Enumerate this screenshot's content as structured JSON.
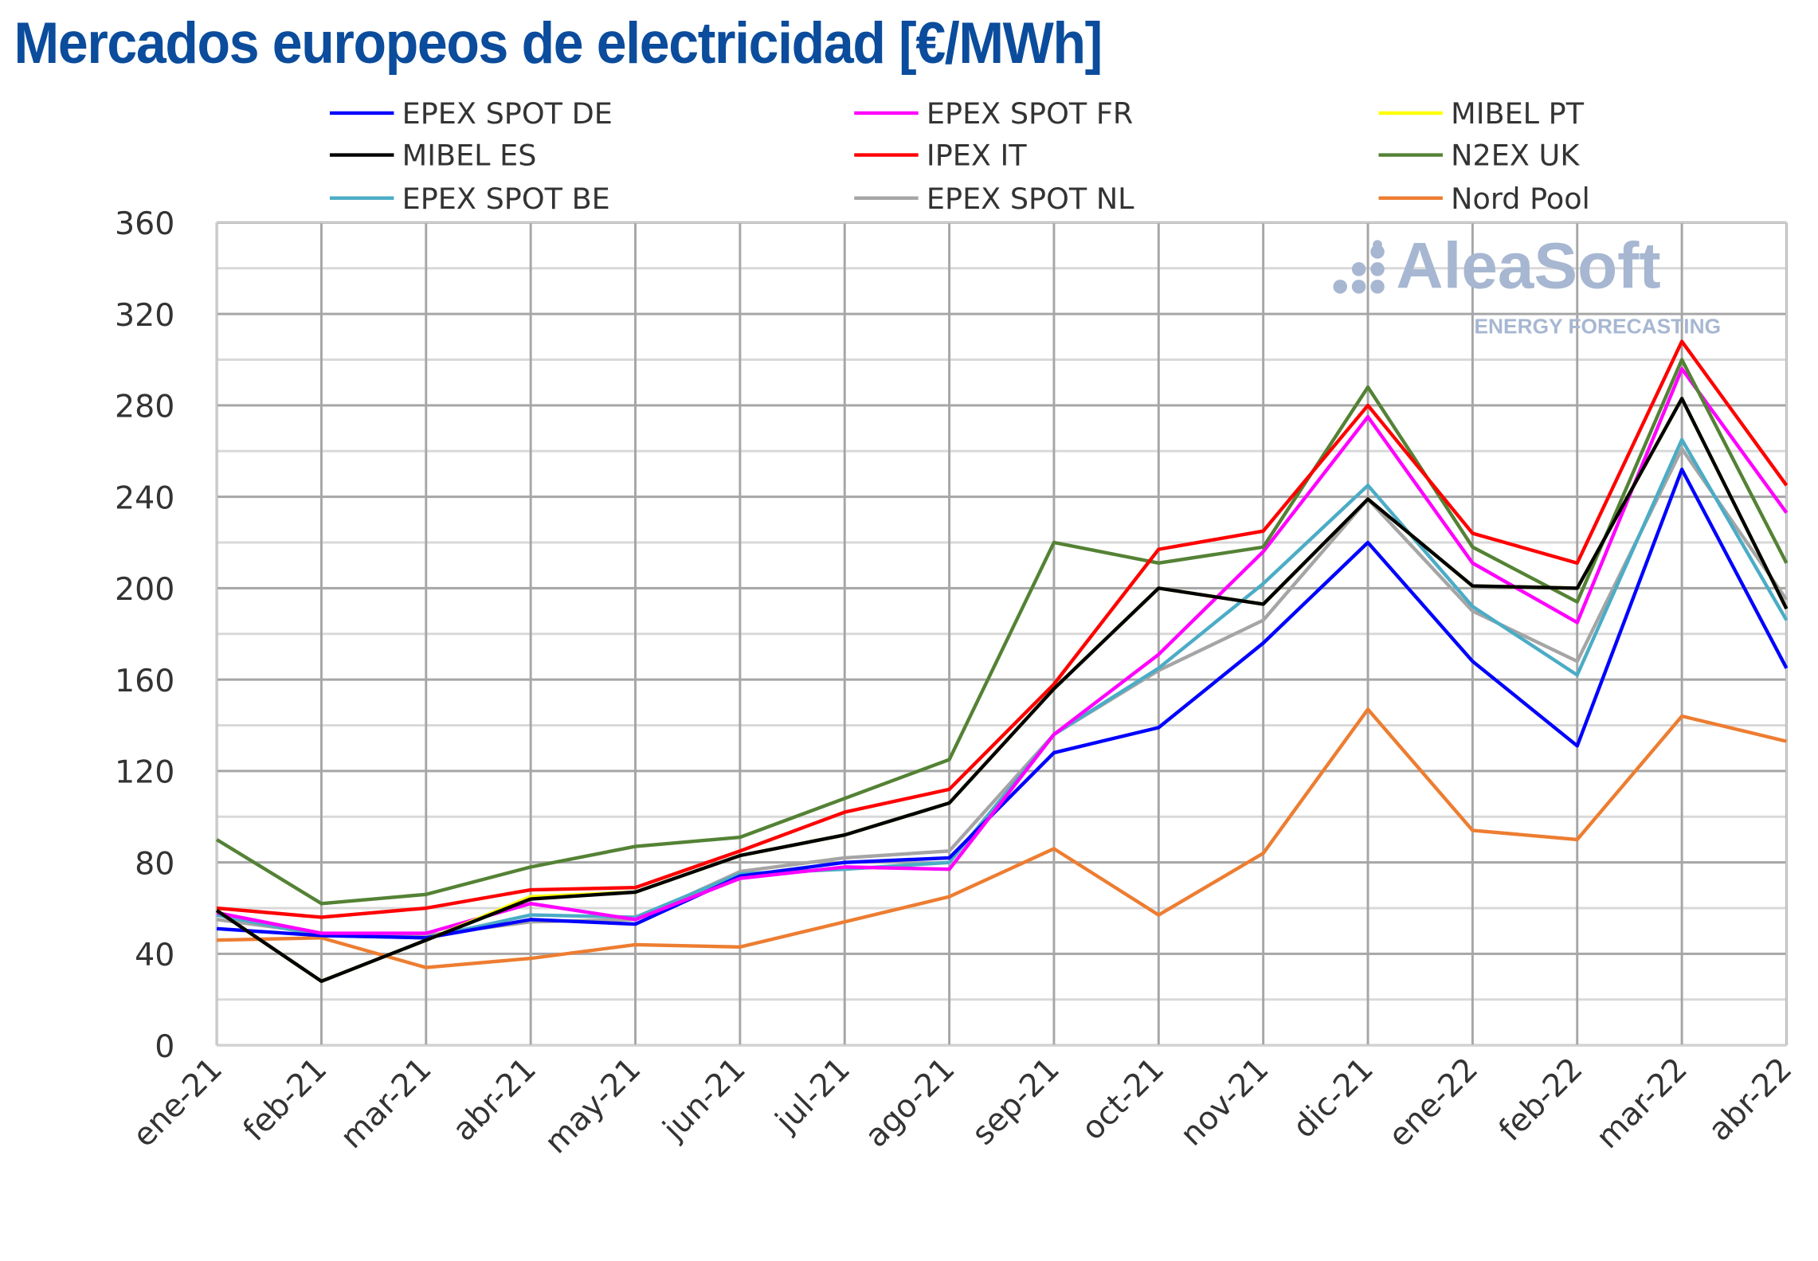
{
  "title": "Mercados europeos de electricidad [€/MWh]",
  "watermark": {
    "brand": "AleaSoft",
    "tagline": "ENERGY FORECASTING"
  },
  "chart_data": {
    "type": "line",
    "title": "Mercados europeos de electricidad [€/MWh]",
    "xlabel": "",
    "ylabel": "",
    "ylim": [
      0,
      360
    ],
    "yticks": [
      0,
      40,
      80,
      120,
      160,
      200,
      240,
      280,
      320,
      360
    ],
    "grid": true,
    "legend": "top",
    "categories": [
      "ene-21",
      "feb-21",
      "mar-21",
      "abr-21",
      "may-21",
      "jun-21",
      "jul-21",
      "ago-21",
      "sep-21",
      "oct-21",
      "nov-21",
      "dic-21",
      "ene-22",
      "feb-22",
      "mar-22",
      "abr-22"
    ],
    "series": [
      {
        "name": "EPEX SPOT DE",
        "color": "#0000ff",
        "values": [
          51,
          48,
          47,
          55,
          53,
          74,
          80,
          82,
          128,
          139,
          176,
          220,
          168,
          131,
          252,
          165
        ]
      },
      {
        "name": "EPEX SPOT FR",
        "color": "#ff00ff",
        "values": [
          58,
          49,
          49,
          62,
          55,
          73,
          78,
          77,
          136,
          171,
          216,
          275,
          211,
          185,
          296,
          233
        ]
      },
      {
        "name": "MIBEL PT",
        "color": "#ffff00",
        "values": [
          59,
          28,
          46,
          65,
          67,
          83,
          92,
          106,
          156,
          200,
          193,
          239,
          201,
          200,
          283,
          191
        ]
      },
      {
        "name": "MIBEL ES",
        "color": "#000000",
        "values": [
          59,
          28,
          46,
          64,
          67,
          83,
          92,
          106,
          156,
          200,
          193,
          239,
          201,
          200,
          283,
          191
        ]
      },
      {
        "name": "IPEX IT",
        "color": "#ff0000",
        "values": [
          60,
          56,
          60,
          68,
          69,
          85,
          102,
          112,
          158,
          217,
          225,
          280,
          224,
          211,
          308,
          245
        ]
      },
      {
        "name": "N2EX UK",
        "color": "#548235",
        "values": [
          90,
          62,
          66,
          78,
          87,
          91,
          108,
          125,
          220,
          211,
          218,
          288,
          218,
          194,
          300,
          211
        ]
      },
      {
        "name": "EPEX SPOT BE",
        "color": "#4bacc6",
        "values": [
          57,
          48,
          47,
          57,
          56,
          75,
          77,
          80,
          136,
          165,
          202,
          245,
          192,
          162,
          265,
          186
        ]
      },
      {
        "name": "EPEX SPOT NL",
        "color": "#a5a5a5",
        "values": [
          55,
          49,
          48,
          54,
          55,
          76,
          82,
          85,
          136,
          164,
          186,
          239,
          190,
          168,
          261,
          195
        ]
      },
      {
        "name": "Nord Pool",
        "color": "#ed7d31",
        "values": [
          46,
          47,
          34,
          38,
          44,
          43,
          54,
          65,
          86,
          57,
          84,
          147,
          94,
          90,
          144,
          133
        ]
      }
    ]
  }
}
